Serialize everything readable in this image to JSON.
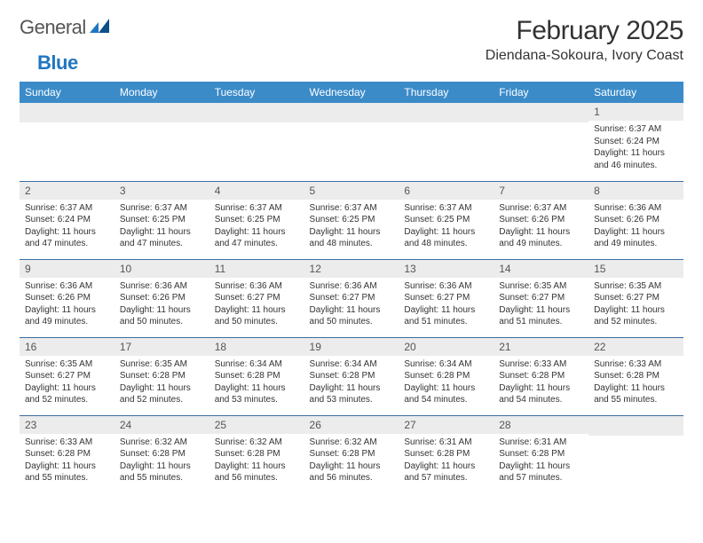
{
  "brand": {
    "name1": "General",
    "name2": "Blue"
  },
  "title": "February 2025",
  "location": "Diendana-Sokoura, Ivory Coast",
  "colors": {
    "header_bg": "#3b8bc9",
    "row_rule": "#3b6ea0",
    "daynum_bg": "#ececec",
    "brand_blue": "#1f76c2"
  },
  "weekdays": [
    "Sunday",
    "Monday",
    "Tuesday",
    "Wednesday",
    "Thursday",
    "Friday",
    "Saturday"
  ],
  "weeks": [
    [
      null,
      null,
      null,
      null,
      null,
      null,
      {
        "n": "1",
        "sr": "Sunrise: 6:37 AM",
        "ss": "Sunset: 6:24 PM",
        "dl": "Daylight: 11 hours and 46 minutes."
      }
    ],
    [
      {
        "n": "2",
        "sr": "Sunrise: 6:37 AM",
        "ss": "Sunset: 6:24 PM",
        "dl": "Daylight: 11 hours and 47 minutes."
      },
      {
        "n": "3",
        "sr": "Sunrise: 6:37 AM",
        "ss": "Sunset: 6:25 PM",
        "dl": "Daylight: 11 hours and 47 minutes."
      },
      {
        "n": "4",
        "sr": "Sunrise: 6:37 AM",
        "ss": "Sunset: 6:25 PM",
        "dl": "Daylight: 11 hours and 47 minutes."
      },
      {
        "n": "5",
        "sr": "Sunrise: 6:37 AM",
        "ss": "Sunset: 6:25 PM",
        "dl": "Daylight: 11 hours and 48 minutes."
      },
      {
        "n": "6",
        "sr": "Sunrise: 6:37 AM",
        "ss": "Sunset: 6:25 PM",
        "dl": "Daylight: 11 hours and 48 minutes."
      },
      {
        "n": "7",
        "sr": "Sunrise: 6:37 AM",
        "ss": "Sunset: 6:26 PM",
        "dl": "Daylight: 11 hours and 49 minutes."
      },
      {
        "n": "8",
        "sr": "Sunrise: 6:36 AM",
        "ss": "Sunset: 6:26 PM",
        "dl": "Daylight: 11 hours and 49 minutes."
      }
    ],
    [
      {
        "n": "9",
        "sr": "Sunrise: 6:36 AM",
        "ss": "Sunset: 6:26 PM",
        "dl": "Daylight: 11 hours and 49 minutes."
      },
      {
        "n": "10",
        "sr": "Sunrise: 6:36 AM",
        "ss": "Sunset: 6:26 PM",
        "dl": "Daylight: 11 hours and 50 minutes."
      },
      {
        "n": "11",
        "sr": "Sunrise: 6:36 AM",
        "ss": "Sunset: 6:27 PM",
        "dl": "Daylight: 11 hours and 50 minutes."
      },
      {
        "n": "12",
        "sr": "Sunrise: 6:36 AM",
        "ss": "Sunset: 6:27 PM",
        "dl": "Daylight: 11 hours and 50 minutes."
      },
      {
        "n": "13",
        "sr": "Sunrise: 6:36 AM",
        "ss": "Sunset: 6:27 PM",
        "dl": "Daylight: 11 hours and 51 minutes."
      },
      {
        "n": "14",
        "sr": "Sunrise: 6:35 AM",
        "ss": "Sunset: 6:27 PM",
        "dl": "Daylight: 11 hours and 51 minutes."
      },
      {
        "n": "15",
        "sr": "Sunrise: 6:35 AM",
        "ss": "Sunset: 6:27 PM",
        "dl": "Daylight: 11 hours and 52 minutes."
      }
    ],
    [
      {
        "n": "16",
        "sr": "Sunrise: 6:35 AM",
        "ss": "Sunset: 6:27 PM",
        "dl": "Daylight: 11 hours and 52 minutes."
      },
      {
        "n": "17",
        "sr": "Sunrise: 6:35 AM",
        "ss": "Sunset: 6:28 PM",
        "dl": "Daylight: 11 hours and 52 minutes."
      },
      {
        "n": "18",
        "sr": "Sunrise: 6:34 AM",
        "ss": "Sunset: 6:28 PM",
        "dl": "Daylight: 11 hours and 53 minutes."
      },
      {
        "n": "19",
        "sr": "Sunrise: 6:34 AM",
        "ss": "Sunset: 6:28 PM",
        "dl": "Daylight: 11 hours and 53 minutes."
      },
      {
        "n": "20",
        "sr": "Sunrise: 6:34 AM",
        "ss": "Sunset: 6:28 PM",
        "dl": "Daylight: 11 hours and 54 minutes."
      },
      {
        "n": "21",
        "sr": "Sunrise: 6:33 AM",
        "ss": "Sunset: 6:28 PM",
        "dl": "Daylight: 11 hours and 54 minutes."
      },
      {
        "n": "22",
        "sr": "Sunrise: 6:33 AM",
        "ss": "Sunset: 6:28 PM",
        "dl": "Daylight: 11 hours and 55 minutes."
      }
    ],
    [
      {
        "n": "23",
        "sr": "Sunrise: 6:33 AM",
        "ss": "Sunset: 6:28 PM",
        "dl": "Daylight: 11 hours and 55 minutes."
      },
      {
        "n": "24",
        "sr": "Sunrise: 6:32 AM",
        "ss": "Sunset: 6:28 PM",
        "dl": "Daylight: 11 hours and 55 minutes."
      },
      {
        "n": "25",
        "sr": "Sunrise: 6:32 AM",
        "ss": "Sunset: 6:28 PM",
        "dl": "Daylight: 11 hours and 56 minutes."
      },
      {
        "n": "26",
        "sr": "Sunrise: 6:32 AM",
        "ss": "Sunset: 6:28 PM",
        "dl": "Daylight: 11 hours and 56 minutes."
      },
      {
        "n": "27",
        "sr": "Sunrise: 6:31 AM",
        "ss": "Sunset: 6:28 PM",
        "dl": "Daylight: 11 hours and 57 minutes."
      },
      {
        "n": "28",
        "sr": "Sunrise: 6:31 AM",
        "ss": "Sunset: 6:28 PM",
        "dl": "Daylight: 11 hours and 57 minutes."
      },
      null
    ]
  ]
}
